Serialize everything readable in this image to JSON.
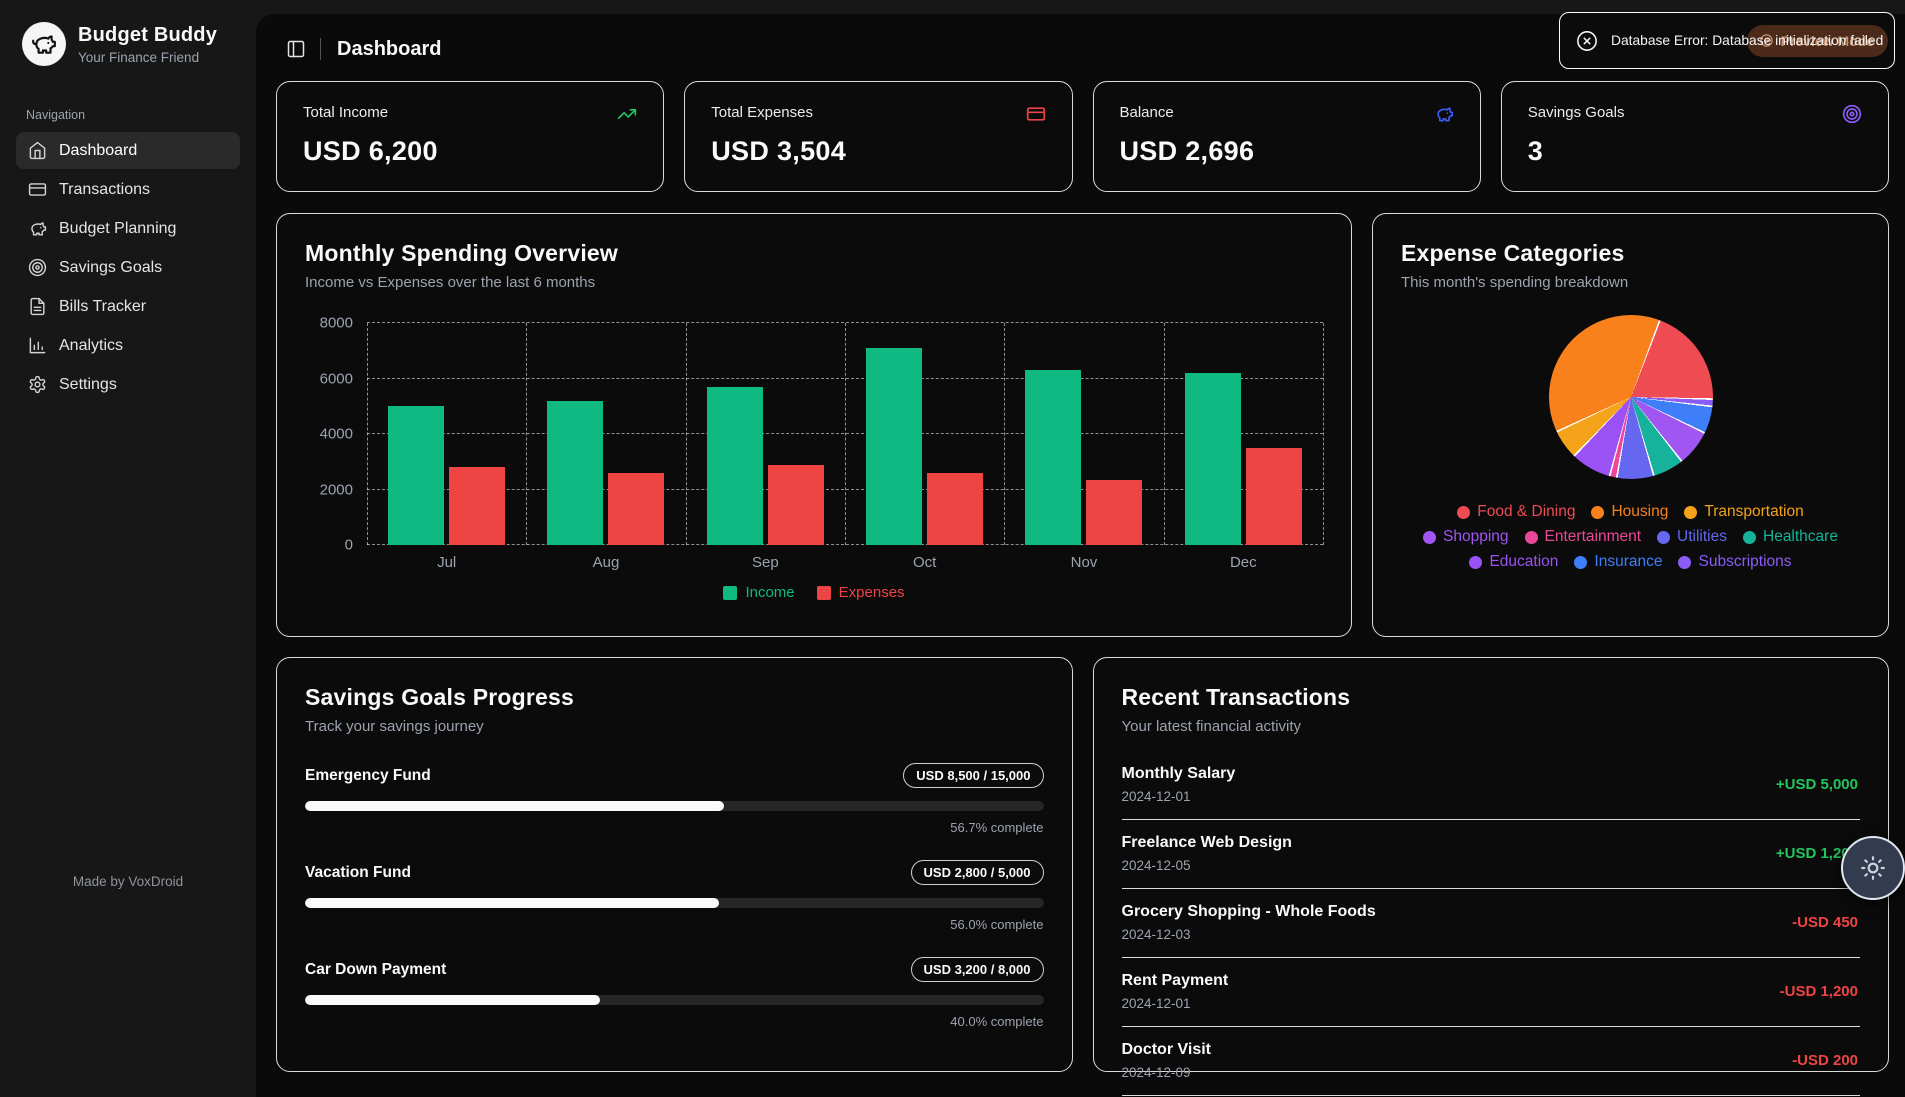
{
  "app": {
    "name": "Budget Buddy",
    "tagline": "Your Finance Friend",
    "made_by": "Made by VoxDroid"
  },
  "sidebar": {
    "section_label": "Navigation",
    "items": [
      {
        "label": "Dashboard",
        "icon": "home-icon",
        "active": true
      },
      {
        "label": "Transactions",
        "icon": "credit-card-icon",
        "active": false
      },
      {
        "label": "Budget Planning",
        "icon": "piggy-bank-icon",
        "active": false
      },
      {
        "label": "Savings Goals",
        "icon": "target-icon",
        "active": false
      },
      {
        "label": "Bills Tracker",
        "icon": "file-text-icon",
        "active": false
      },
      {
        "label": "Analytics",
        "icon": "bar-chart-icon",
        "active": false
      },
      {
        "label": "Settings",
        "icon": "gear-icon",
        "active": false
      }
    ]
  },
  "header": {
    "title": "Dashboard"
  },
  "toast": {
    "message": "Database Error: Database initialization failed",
    "icon": "circle-x-icon"
  },
  "preview_badge": {
    "label": "Preview Mode",
    "icon": "eye-icon"
  },
  "stats": [
    {
      "label": "Total Income",
      "value": "USD 6,200",
      "icon": "trending-up-icon",
      "icon_color": "#22c55e"
    },
    {
      "label": "Total Expenses",
      "value": "USD 3,504",
      "icon": "credit-card-icon",
      "icon_color": "#ef4444"
    },
    {
      "label": "Balance",
      "value": "USD 2,696",
      "icon": "piggy-bank-icon",
      "icon_color": "#3b5cf6"
    },
    {
      "label": "Savings Goals",
      "value": "3",
      "icon": "target-icon",
      "icon_color": "#8b5cf6"
    }
  ],
  "spending_card": {
    "title": "Monthly Spending Overview",
    "subtitle": "Income vs Expenses over the last 6 months"
  },
  "categories_card": {
    "title": "Expense Categories",
    "subtitle": "This month's spending breakdown"
  },
  "goals_card": {
    "title": "Savings Goals Progress",
    "subtitle": "Track your savings journey",
    "goals": [
      {
        "name": "Emergency Fund",
        "badge": "USD 8,500 / 15,000",
        "percent": 56.7,
        "percent_label": "56.7% complete"
      },
      {
        "name": "Vacation Fund",
        "badge": "USD 2,800 / 5,000",
        "percent": 56.0,
        "percent_label": "56.0% complete"
      },
      {
        "name": "Car Down Payment",
        "badge": "USD 3,200 / 8,000",
        "percent": 40.0,
        "percent_label": "40.0% complete"
      }
    ]
  },
  "transactions_card": {
    "title": "Recent Transactions",
    "subtitle": "Your latest financial activity",
    "items": [
      {
        "name": "Monthly Salary",
        "date": "2024-12-01",
        "amount": "+USD 5,000",
        "direction": "income"
      },
      {
        "name": "Freelance Web Design",
        "date": "2024-12-05",
        "amount": "+USD 1,200",
        "direction": "income"
      },
      {
        "name": "Grocery Shopping - Whole Foods",
        "date": "2024-12-03",
        "amount": "-USD 450",
        "direction": "expense"
      },
      {
        "name": "Rent Payment",
        "date": "2024-12-01",
        "amount": "-USD 1,200",
        "direction": "expense"
      },
      {
        "name": "Doctor Visit",
        "date": "2024-12-09",
        "amount": "-USD 200",
        "direction": "expense"
      }
    ]
  },
  "chart_data": [
    {
      "type": "bar",
      "title": "Monthly Spending Overview",
      "categories": [
        "Jul",
        "Aug",
        "Sep",
        "Oct",
        "Nov",
        "Dec"
      ],
      "series": [
        {
          "name": "Income",
          "color": "#10b981",
          "values": [
            5000,
            5200,
            5700,
            7100,
            6300,
            6200
          ]
        },
        {
          "name": "Expenses",
          "color": "#ef4444",
          "values": [
            2800,
            2600,
            2900,
            2600,
            2350,
            3500
          ]
        }
      ],
      "ylim": [
        0,
        8000
      ],
      "yticks": [
        0,
        2000,
        4000,
        6000,
        8000
      ],
      "grid": "dashed",
      "legend_position": "bottom"
    },
    {
      "type": "pie",
      "title": "Expense Categories",
      "values_estimated_from_pixels": true,
      "slices": [
        {
          "name": "Food & Dining",
          "color": "#ee4b53",
          "value": 690
        },
        {
          "name": "Housing",
          "color": "#f9811c",
          "value": 1320
        },
        {
          "name": "Transportation",
          "color": "#f5a31b",
          "value": 205
        },
        {
          "name": "Shopping",
          "color": "#a156f2",
          "value": 250
        },
        {
          "name": "Entertainment",
          "color": "#ec4899",
          "value": 50
        },
        {
          "name": "Utilities",
          "color": "#6567f1",
          "value": 255
        },
        {
          "name": "Healthcare",
          "color": "#16b29b",
          "value": 215
        },
        {
          "name": "Education",
          "color": "#9b52f5",
          "value": 280
        },
        {
          "name": "Insurance",
          "color": "#3e7ef8",
          "value": 189
        },
        {
          "name": "Subscriptions",
          "color": "#8b5cf6",
          "value": 50
        }
      ],
      "draw_order": [
        "Food & Dining",
        "Subscriptions",
        "Insurance",
        "Shopping",
        "Healthcare",
        "Utilities",
        "Entertainment",
        "Education",
        "Transportation",
        "Housing"
      ],
      "rotation_deg": 20,
      "legend_position": "bottom"
    }
  ],
  "colors": {
    "income_green": "#10b981",
    "expense_red": "#ef4444",
    "progress_fill": "#fafafa",
    "sidebar_bg": "#171717",
    "panel_bg": "#0a0a0a"
  }
}
